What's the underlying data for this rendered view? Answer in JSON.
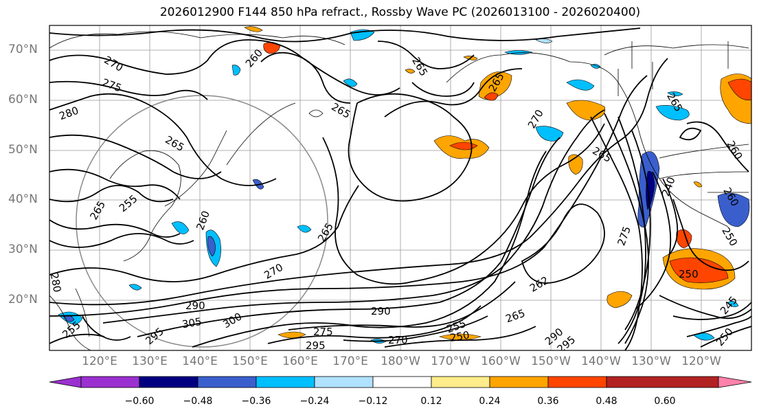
{
  "title": "2026012900 F144 850 hPa refract., Rossby Wave PC (2026013100 - 2026020400)",
  "lat_labels": [
    "70°N",
    "60°N",
    "50°N",
    "40°N",
    "30°N",
    "20°N"
  ],
  "lon_labels": [
    "120°E",
    "130°E",
    "140°E",
    "150°E",
    "160°E",
    "170°E",
    "180°W",
    "170°W",
    "160°W",
    "150°W",
    "140°W",
    "130°W",
    "120°W"
  ],
  "colorbar": {
    "ticks": [
      "−0.60",
      "−0.48",
      "−0.36",
      "−0.24",
      "−0.12",
      "0.12",
      "0.24",
      "0.36",
      "0.48",
      "0.60"
    ],
    "colors": [
      "#9b30d0",
      "#000080",
      "#3a5fcd",
      "#00bfff",
      "#b0e2ff",
      "#ffffff",
      "#ffec8b",
      "#ffa500",
      "#ff4500",
      "#b22222",
      "#ff82ab"
    ]
  },
  "contour_labels": [
    "260",
    "270",
    "275",
    "280",
    "265",
    "265",
    "265",
    "265",
    "270",
    "265",
    "265",
    "265",
    "260",
    "260",
    "240",
    "255",
    "260",
    "265",
    "270",
    "250",
    "275",
    "262",
    "250",
    "280",
    "290",
    "295",
    "305",
    "300",
    "290",
    "275",
    "295",
    "270",
    "265",
    "255",
    "250",
    "290",
    "295",
    "250",
    "245",
    "255"
  ]
}
